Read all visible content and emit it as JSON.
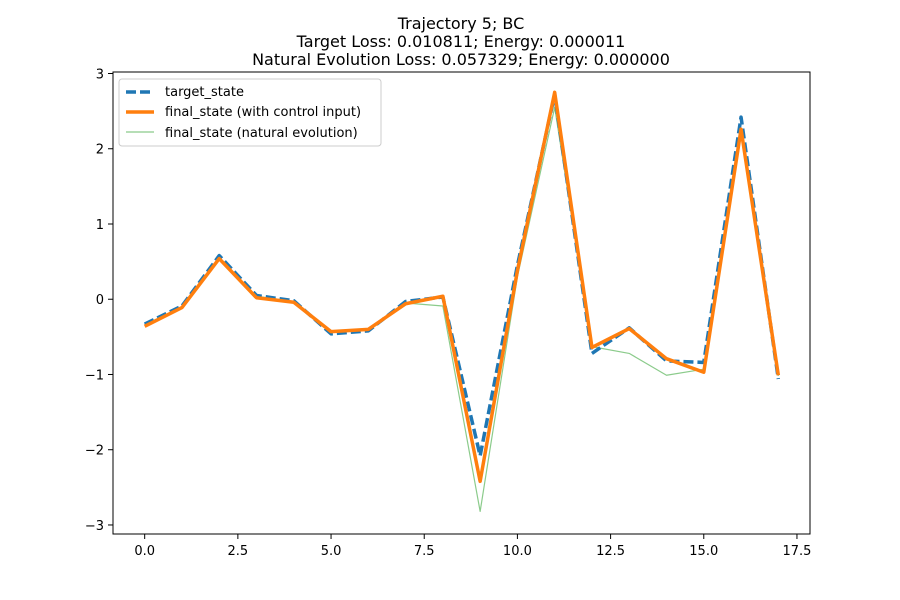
{
  "chart_data": {
    "type": "line",
    "title_lines": [
      "Trajectory 5; BC",
      "Target Loss: 0.010811; Energy: 0.000011",
      "Natural Evolution Loss: 0.057329; Energy: 0.000000"
    ],
    "xlabel": "",
    "ylabel": "",
    "xlim": [
      -0.85,
      17.85
    ],
    "ylim": [
      -3.12,
      3.02
    ],
    "xticks": [
      0,
      2.5,
      5,
      7.5,
      10,
      12.5,
      15,
      17.5
    ],
    "xtick_labels": [
      "0.0",
      "2.5",
      "5.0",
      "7.5",
      "10.0",
      "12.5",
      "15.0",
      "17.5"
    ],
    "yticks": [
      -3,
      -2,
      -1,
      0,
      1,
      2,
      3
    ],
    "ytick_labels": [
      "−3",
      "−2",
      "−1",
      "0",
      "1",
      "2",
      "3"
    ],
    "grid": false,
    "legend_position": "upper-left",
    "x": [
      0,
      1,
      2,
      3,
      4,
      5,
      6,
      7,
      8,
      9,
      10,
      11,
      12,
      13,
      14,
      15,
      16,
      17
    ],
    "series": [
      {
        "name": "target_state",
        "color": "#1f77b4",
        "style": "dashed",
        "values": [
          -0.33,
          -0.09,
          0.58,
          0.05,
          -0.02,
          -0.46,
          -0.42,
          -0.03,
          0.03,
          -2.08,
          0.45,
          2.72,
          -0.72,
          -0.38,
          -0.82,
          -0.84,
          2.42,
          -1.06
        ]
      },
      {
        "name": "final_state (with control input)",
        "color": "#ff7f0e",
        "style": "solid",
        "values": [
          -0.36,
          -0.11,
          0.54,
          0.02,
          -0.04,
          -0.43,
          -0.4,
          -0.06,
          0.04,
          -2.42,
          0.38,
          2.75,
          -0.64,
          -0.39,
          -0.79,
          -0.97,
          2.26,
          -1.01
        ]
      },
      {
        "name": "final_state (natural evolution)",
        "color": "#2ca02c",
        "style": "thin",
        "values": [
          -0.34,
          -0.1,
          0.55,
          0.04,
          -0.03,
          -0.44,
          -0.41,
          -0.05,
          -0.09,
          -2.82,
          0.3,
          2.55,
          -0.63,
          -0.72,
          -1.01,
          -0.93,
          2.27,
          -1.02
        ]
      }
    ]
  }
}
